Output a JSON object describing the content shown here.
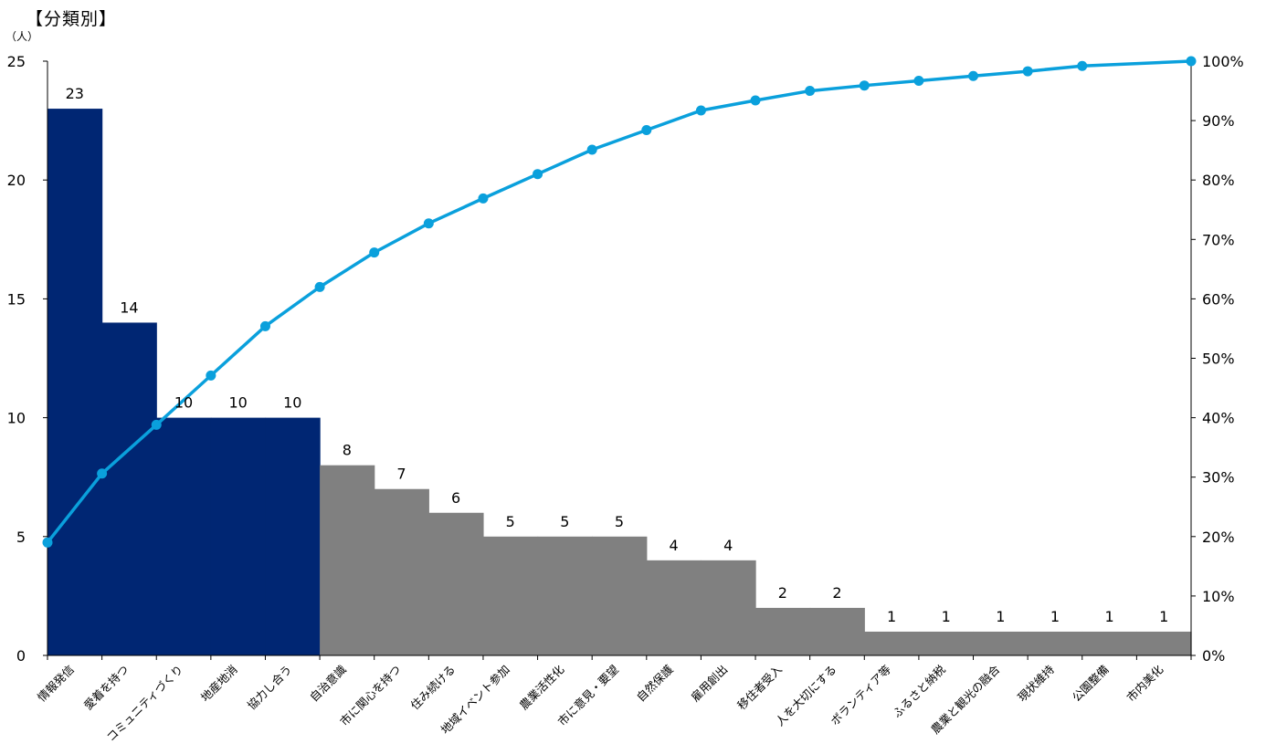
{
  "chart_data": {
    "type": "bar",
    "title": "【分類別】",
    "ylabel": "（人）",
    "ylim": [
      0,
      25
    ],
    "y_ticks": [
      "0",
      "5",
      "10",
      "15",
      "20",
      "25"
    ],
    "y2lim": [
      0,
      100
    ],
    "y2_ticks": [
      "0%",
      "10%",
      "20%",
      "30%",
      "40%",
      "50%",
      "60%",
      "70%",
      "80%",
      "90%",
      "100%"
    ],
    "categories": [
      "情報発信",
      "愛着を持つ",
      "コミュニティづくり",
      "地産地消",
      "協力し合う",
      "自治意識",
      "市に関心を持つ",
      "住み続ける",
      "地域イベント参加",
      "農業活性化",
      "市に意見・要望",
      "自然保護",
      "雇用創出",
      "移住者受入",
      "人を大切にする",
      "ボランティア等",
      "ふるさと納税",
      "農業と観光の融合",
      "現状維持",
      "公園整備",
      "市内美化"
    ],
    "values": [
      23,
      14,
      10,
      10,
      10,
      8,
      7,
      6,
      5,
      5,
      5,
      4,
      4,
      2,
      2,
      1,
      1,
      1,
      1,
      1,
      1
    ],
    "value_labels": [
      "23",
      "14",
      "10",
      "10",
      "10",
      "8",
      "7",
      "6",
      "5",
      "5",
      "5",
      "4",
      "4",
      "2",
      "2",
      "1",
      "1",
      "1",
      "1",
      "1",
      "1"
    ],
    "highlight_count": 5,
    "cumulative_percent": [
      19,
      30.6,
      38.8,
      47.1,
      55.4,
      62,
      67.8,
      72.7,
      76.9,
      81,
      85.1,
      88.4,
      91.7,
      93.4,
      95,
      95.9,
      96.7,
      97.5,
      98.3,
      99.2,
      100
    ],
    "colors": {
      "highlight_bar": "#002673",
      "other_bar": "#808080",
      "line": "#0AA0DC",
      "axis": "#000000"
    },
    "grid": false,
    "legend": "none"
  }
}
